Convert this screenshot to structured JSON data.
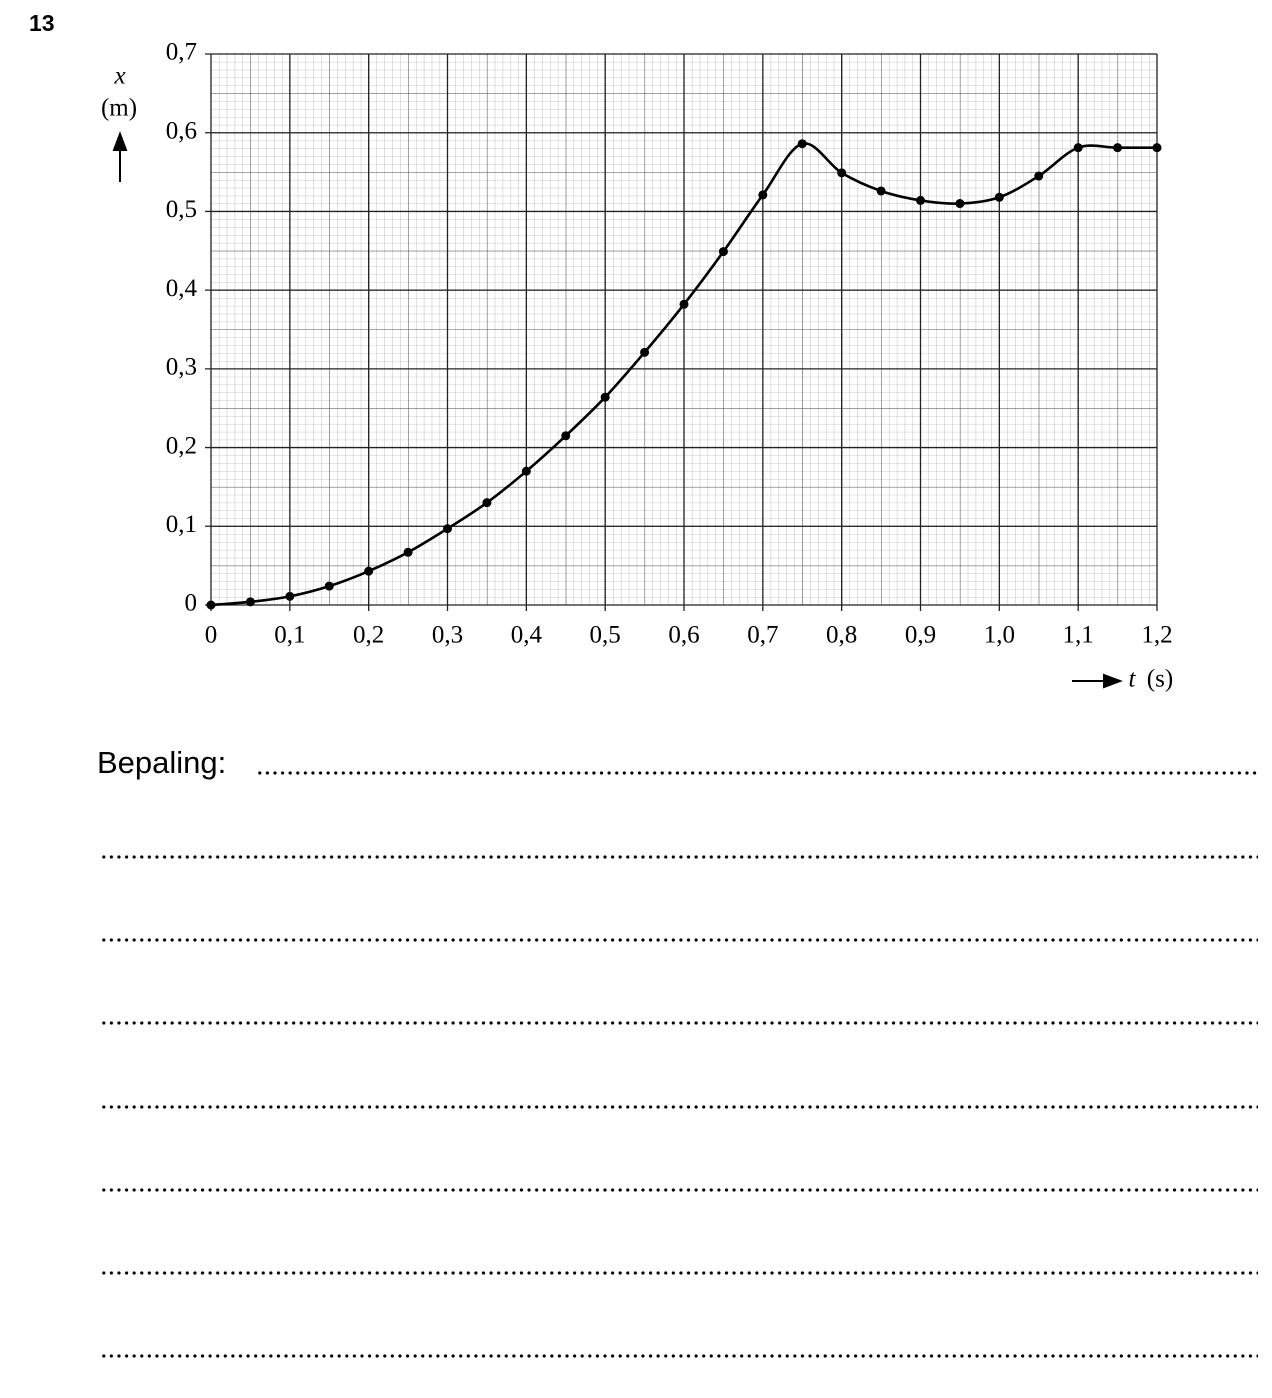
{
  "question_number": "13",
  "chart_data": {
    "type": "line",
    "y_label": "x",
    "y_unit": "(m)",
    "x_label": "t",
    "x_unit": "(s)",
    "x": [
      0,
      0.05,
      0.1,
      0.15,
      0.2,
      0.25,
      0.3,
      0.35,
      0.4,
      0.45,
      0.5,
      0.55,
      0.6,
      0.65,
      0.7,
      0.75,
      0.8,
      0.85,
      0.9,
      0.95,
      1.0,
      1.05,
      1.1,
      1.15,
      1.2
    ],
    "series": [
      {
        "color": "#000000",
        "values": [
          0,
          0.004,
          0.011,
          0.024,
          0.043,
          0.067,
          0.097,
          0.13,
          0.17,
          0.215,
          0.264,
          0.321,
          0.382,
          0.449,
          0.521,
          0.586,
          0.549,
          0.526,
          0.514,
          0.51,
          0.518,
          0.545,
          0.581,
          0.581,
          0.581
        ]
      }
    ],
    "xlim": [
      0,
      1.2
    ],
    "ylim": [
      0,
      0.7
    ],
    "xticks": [
      0,
      {
        "value": 0.1,
        "label": "0,1"
      },
      {
        "value": 0.2,
        "label": "0,2"
      },
      {
        "value": 0.3,
        "label": "0,3"
      },
      {
        "value": 0.4,
        "label": "0,4"
      },
      {
        "value": 0.5,
        "label": "0,5"
      },
      {
        "value": 0.6,
        "label": "0,6"
      },
      {
        "value": 0.7,
        "label": "0,7"
      },
      {
        "value": 0.8,
        "label": "0,8"
      },
      {
        "value": 0.9,
        "label": "0,9"
      },
      {
        "value": 1.0,
        "label": "1,0"
      },
      {
        "value": 1.1,
        "label": "1,1"
      },
      {
        "value": 1.2,
        "label": "1,2"
      }
    ],
    "yticks": [
      0,
      {
        "value": 0.1,
        "label": "0,1"
      },
      {
        "value": 0.2,
        "label": "0,2"
      },
      {
        "value": 0.3,
        "label": "0,3"
      },
      {
        "value": 0.4,
        "label": "0,4"
      },
      {
        "value": 0.5,
        "label": "0,5"
      },
      {
        "value": 0.6,
        "label": "0,6"
      },
      {
        "value": 0.7,
        "label": "0,7"
      }
    ],
    "grid": true
  },
  "answer": {
    "label": "Bepaling:"
  }
}
